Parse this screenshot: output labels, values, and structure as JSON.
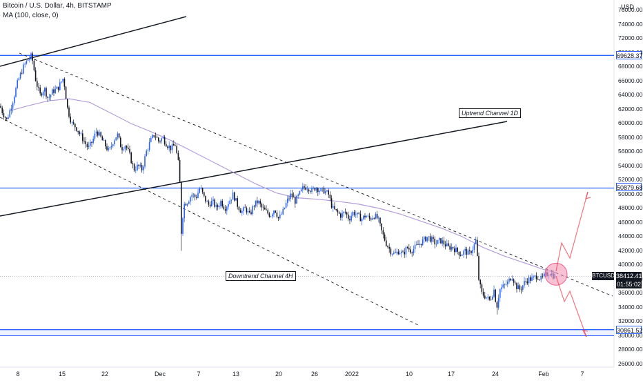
{
  "header": {
    "title": "Bitcoin / U.S. Dollar, 4h, BITSTAMP",
    "indicator": "MA (100, close, 0)"
  },
  "currency_label": "USD",
  "annotations": {
    "uptrend": "Uptrend Channel 1D",
    "downtrend": "Downtrend Channel 4H"
  },
  "price_tags": {
    "upper_resistance": "69628.37",
    "mid_resistance": "50879.68",
    "support": "30861.52",
    "current_symbol": "BTCUSD",
    "current_price": "38412.41",
    "countdown": "01:55:02"
  },
  "colors": {
    "candle_up": "#2962ff",
    "candle_down": "#131722",
    "ma_line": "#b39ddb",
    "horizontal_levels": "#2962ff",
    "trendline": "#131722",
    "projection": "#f23645",
    "highlight_circle": "#f48fb1"
  },
  "chart_data": {
    "type": "candlestick",
    "y_axis_ticks": [
      "76000.00",
      "74000.00",
      "72000.00",
      "70000.00",
      "68000.00",
      "66000.00",
      "64000.00",
      "62000.00",
      "60000.00",
      "58000.00",
      "56000.00",
      "54000.00",
      "52000.00",
      "50000.00",
      "48000.00",
      "46000.00",
      "44000.00",
      "42000.00",
      "40000.00",
      "38000.00",
      "36000.00",
      "34000.00",
      "32000.00",
      "30000.00",
      "28000.00",
      "26000.00"
    ],
    "x_axis_ticks": [
      "8",
      "15",
      "22",
      "Dec",
      "7",
      "13",
      "20",
      "26",
      "2022",
      "10",
      "17",
      "24",
      "Feb",
      "7"
    ],
    "ylim": [
      25000,
      77000
    ],
    "horizontal_levels": [
      69628.37,
      50879.68,
      30861.52
    ],
    "support_zone": [
      30000,
      30861.52
    ],
    "price_path": [
      [
        0,
        62500
      ],
      [
        4,
        61500
      ],
      [
        10,
        60500
      ],
      [
        18,
        63000
      ],
      [
        26,
        66000
      ],
      [
        34,
        68000
      ],
      [
        40,
        69000
      ],
      [
        46,
        69600
      ],
      [
        52,
        66000
      ],
      [
        58,
        64000
      ],
      [
        64,
        65000
      ],
      [
        70,
        63500
      ],
      [
        76,
        64500
      ],
      [
        84,
        65000
      ],
      [
        92,
        66500
      ],
      [
        98,
        62000
      ],
      [
        104,
        60000
      ],
      [
        110,
        59500
      ],
      [
        116,
        58500
      ],
      [
        122,
        57500
      ],
      [
        128,
        56500
      ],
      [
        134,
        57500
      ],
      [
        140,
        59000
      ],
      [
        146,
        58000
      ],
      [
        152,
        57000
      ],
      [
        158,
        56000
      ],
      [
        164,
        57500
      ],
      [
        170,
        58500
      ],
      [
        176,
        56500
      ],
      [
        182,
        57000
      ],
      [
        188,
        55500
      ],
      [
        194,
        53500
      ],
      [
        200,
        54000
      ],
      [
        206,
        53500
      ],
      [
        212,
        56000
      ],
      [
        218,
        57500
      ],
      [
        224,
        58500
      ],
      [
        230,
        57500
      ],
      [
        236,
        58000
      ],
      [
        242,
        57000
      ],
      [
        248,
        56500
      ],
      [
        254,
        57000
      ],
      [
        260,
        53500
      ],
      [
        263,
        44000
      ],
      [
        266,
        48500
      ],
      [
        272,
        49000
      ],
      [
        278,
        50000
      ],
      [
        284,
        49500
      ],
      [
        290,
        51000
      ],
      [
        296,
        49500
      ],
      [
        302,
        48500
      ],
      [
        308,
        49000
      ],
      [
        314,
        48000
      ],
      [
        320,
        49000
      ],
      [
        326,
        48000
      ],
      [
        332,
        49000
      ],
      [
        338,
        50000
      ],
      [
        344,
        48500
      ],
      [
        350,
        47500
      ],
      [
        356,
        48000
      ],
      [
        362,
        47000
      ],
      [
        368,
        48500
      ],
      [
        374,
        49000
      ],
      [
        380,
        48000
      ],
      [
        386,
        47500
      ],
      [
        392,
        47000
      ],
      [
        398,
        48000
      ],
      [
        404,
        46500
      ],
      [
        410,
        47500
      ],
      [
        416,
        49000
      ],
      [
        422,
        50000
      ],
      [
        428,
        49000
      ],
      [
        434,
        50000
      ],
      [
        440,
        51000
      ],
      [
        446,
        51000
      ],
      [
        452,
        50500
      ],
      [
        458,
        51000
      ],
      [
        464,
        50500
      ],
      [
        470,
        50500
      ],
      [
        476,
        50000
      ],
      [
        482,
        48000
      ],
      [
        488,
        47500
      ],
      [
        494,
        47000
      ],
      [
        500,
        47500
      ],
      [
        506,
        46500
      ],
      [
        512,
        47500
      ],
      [
        518,
        47000
      ],
      [
        524,
        46500
      ],
      [
        530,
        47000
      ],
      [
        536,
        46500
      ],
      [
        542,
        47000
      ],
      [
        548,
        46500
      ],
      [
        554,
        44500
      ],
      [
        560,
        43000
      ],
      [
        566,
        42000
      ],
      [
        572,
        41500
      ],
      [
        578,
        42000
      ],
      [
        584,
        41500
      ],
      [
        590,
        42500
      ],
      [
        596,
        42000
      ],
      [
        602,
        42500
      ],
      [
        608,
        43000
      ],
      [
        614,
        43500
      ],
      [
        620,
        44000
      ],
      [
        626,
        43500
      ],
      [
        632,
        43000
      ],
      [
        638,
        43500
      ],
      [
        644,
        43000
      ],
      [
        650,
        42500
      ],
      [
        656,
        42500
      ],
      [
        662,
        42000
      ],
      [
        668,
        41500
      ],
      [
        674,
        42000
      ],
      [
        680,
        41500
      ],
      [
        686,
        42500
      ],
      [
        690,
        43500
      ],
      [
        694,
        38000
      ],
      [
        698,
        36000
      ],
      [
        704,
        35500
      ],
      [
        710,
        35000
      ],
      [
        716,
        36500
      ],
      [
        720,
        34000
      ],
      [
        724,
        36500
      ],
      [
        730,
        37000
      ],
      [
        736,
        37500
      ],
      [
        742,
        38500
      ],
      [
        748,
        37000
      ],
      [
        754,
        36500
      ],
      [
        760,
        37500
      ],
      [
        766,
        38000
      ],
      [
        772,
        38000
      ],
      [
        778,
        38500
      ],
      [
        784,
        38000
      ],
      [
        790,
        38500
      ],
      [
        796,
        39000
      ],
      [
        802,
        38500
      ],
      [
        806,
        38412
      ]
    ],
    "ma_path": [
      [
        14,
        61800
      ],
      [
        40,
        62500
      ],
      [
        70,
        63200
      ],
      [
        100,
        63500
      ],
      [
        130,
        63000
      ],
      [
        160,
        61500
      ],
      [
        190,
        60000
      ],
      [
        220,
        58800
      ],
      [
        250,
        57500
      ],
      [
        280,
        56000
      ],
      [
        310,
        54500
      ],
      [
        340,
        53000
      ],
      [
        370,
        51500
      ],
      [
        400,
        50200
      ],
      [
        430,
        49500
      ],
      [
        460,
        49300
      ],
      [
        490,
        49000
      ],
      [
        520,
        48600
      ],
      [
        550,
        48000
      ],
      [
        580,
        47200
      ],
      [
        610,
        46200
      ],
      [
        640,
        45200
      ],
      [
        670,
        44000
      ],
      [
        700,
        42500
      ],
      [
        730,
        41300
      ],
      [
        760,
        40300
      ],
      [
        790,
        39300
      ],
      [
        806,
        38900
      ]
    ]
  }
}
